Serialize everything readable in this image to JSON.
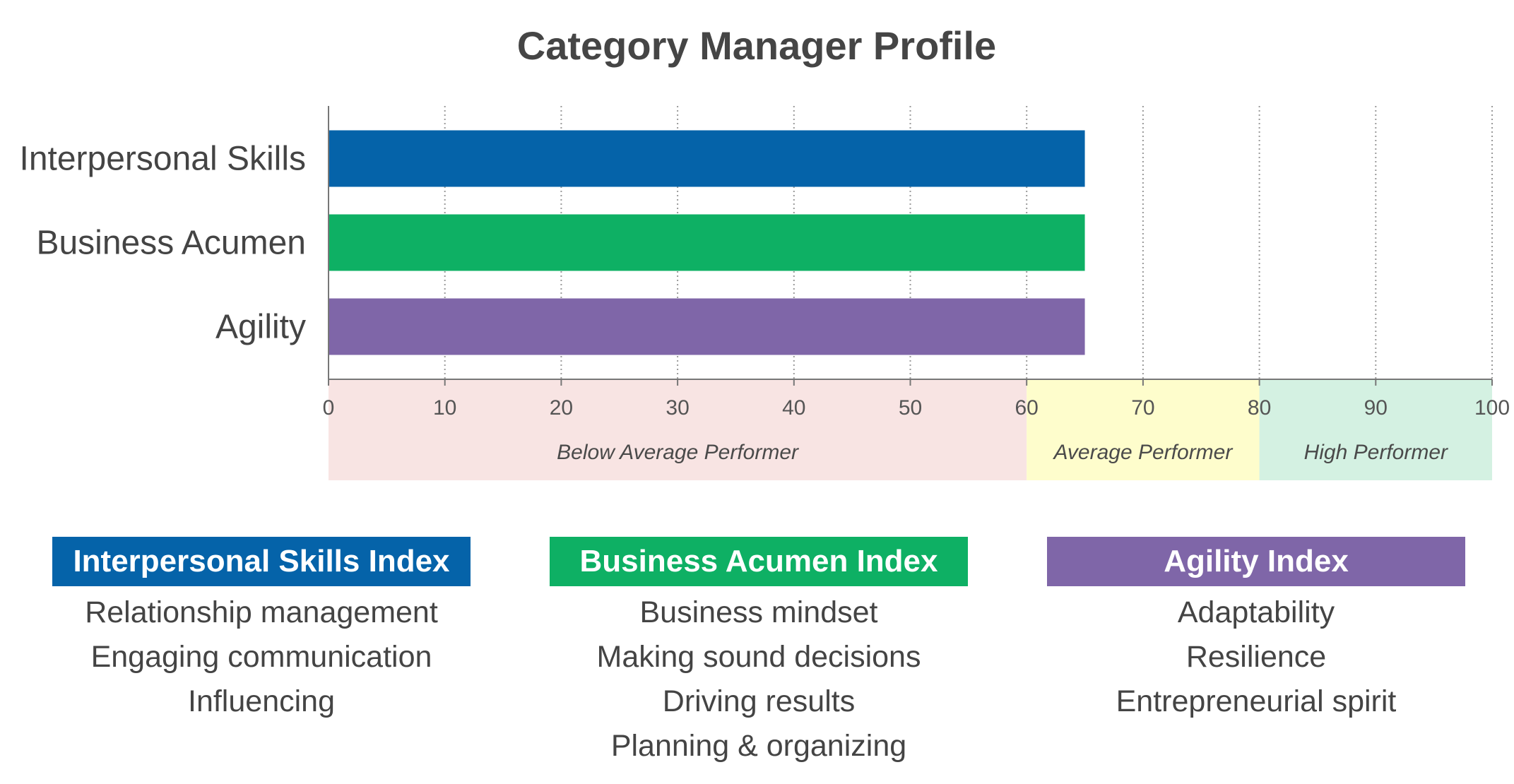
{
  "chart_data": {
    "type": "bar",
    "orientation": "horizontal",
    "title": "Category Manager Profile",
    "categories": [
      "Interpersonal Skills",
      "Business Acumen",
      "Agility"
    ],
    "values": [
      65,
      65,
      65
    ],
    "colors": [
      "#0563A9",
      "#0EB064",
      "#7F66A8"
    ],
    "xlim": [
      0,
      100
    ],
    "xticks": [
      "0",
      "10",
      "20",
      "30",
      "40",
      "50",
      "60",
      "70",
      "80",
      "90",
      "100"
    ],
    "grid": "vertical dotted",
    "bands": [
      {
        "label": "Below Average Performer",
        "from": 0,
        "to": 60,
        "color": "#F8E4E3"
      },
      {
        "label": "Average Performer",
        "from": 60,
        "to": 80,
        "color": "#FEFDCC"
      },
      {
        "label": "High Performer",
        "from": 80,
        "to": 100,
        "color": "#D4F1E2"
      }
    ]
  },
  "legend": [
    {
      "title": "Interpersonal Skills Index",
      "color": "#0563A9",
      "items": [
        "Relationship management",
        "Engaging communication",
        "Influencing"
      ]
    },
    {
      "title": "Business Acumen Index",
      "color": "#0EB064",
      "items": [
        "Business mindset",
        "Making sound decisions",
        "Driving results",
        "Planning & organizing"
      ]
    },
    {
      "title": "Agility Index",
      "color": "#7F66A8",
      "items": [
        "Adaptability",
        "Resilience",
        "Entrepreneurial spirit"
      ]
    }
  ]
}
